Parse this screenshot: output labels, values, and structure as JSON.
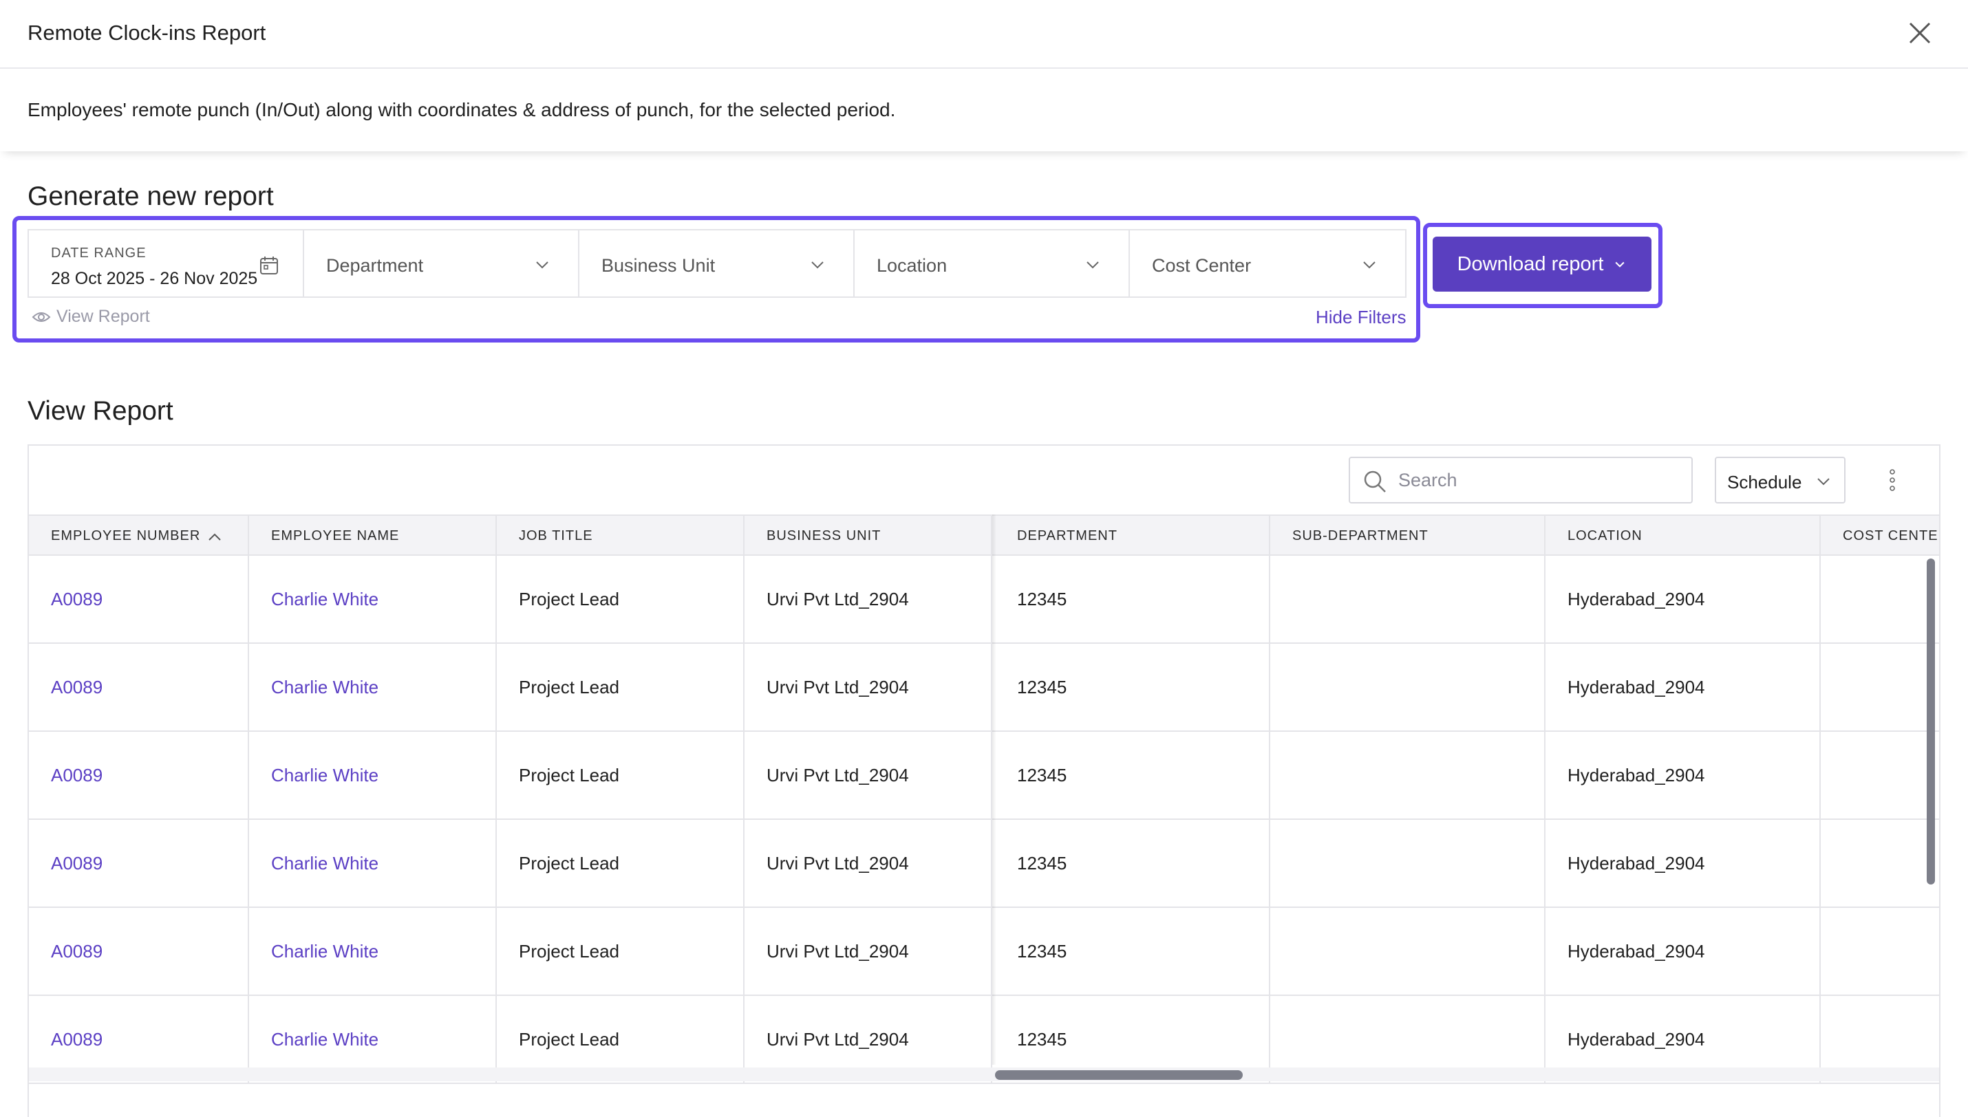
{
  "header": {
    "title": "Remote Clock-ins Report"
  },
  "description": "Employees' remote punch (In/Out) along with coordinates & address of punch, for the selected period.",
  "generate": {
    "title": "Generate new report",
    "date_range_label": "DATE RANGE",
    "date_range_value": "28 Oct 2025 - 26 Nov 2025",
    "filters": [
      "Department",
      "Business Unit",
      "Location",
      "Cost Center"
    ],
    "view_report_link": "View Report",
    "hide_filters": "Hide Filters",
    "download_button": "Download report"
  },
  "view": {
    "title": "View Report",
    "search_placeholder": "Search",
    "schedule_label": "Schedule",
    "columns": [
      "EMPLOYEE NUMBER",
      "EMPLOYEE NAME",
      "JOB TITLE",
      "BUSINESS UNIT",
      "DEPARTMENT",
      "SUB-DEPARTMENT",
      "LOCATION",
      "COST CENTER"
    ],
    "rows": [
      [
        "A0089",
        "Charlie White",
        "Project Lead",
        "Urvi Pvt Ltd_2904",
        "12345",
        "",
        "Hyderabad_2904",
        ""
      ],
      [
        "A0089",
        "Charlie White",
        "Project Lead",
        "Urvi Pvt Ltd_2904",
        "12345",
        "",
        "Hyderabad_2904",
        ""
      ],
      [
        "A0089",
        "Charlie White",
        "Project Lead",
        "Urvi Pvt Ltd_2904",
        "12345",
        "",
        "Hyderabad_2904",
        ""
      ],
      [
        "A0089",
        "Charlie White",
        "Project Lead",
        "Urvi Pvt Ltd_2904",
        "12345",
        "",
        "Hyderabad_2904",
        ""
      ],
      [
        "A0089",
        "Charlie White",
        "Project Lead",
        "Urvi Pvt Ltd_2904",
        "12345",
        "",
        "Hyderabad_2904",
        ""
      ],
      [
        "A0089",
        "Charlie White",
        "Project Lead",
        "Urvi Pvt Ltd_2904",
        "12345",
        "",
        "Hyderabad_2904",
        ""
      ]
    ]
  },
  "colors": {
    "accent": "#5a3fc0",
    "highlight": "#6a4cf0",
    "link": "#5b3fc4"
  },
  "icons": [
    "close-icon",
    "calendar-icon",
    "chevron-down-icon",
    "eye-icon",
    "search-icon",
    "kebab-menu-icon",
    "sort-ascending-icon"
  ]
}
